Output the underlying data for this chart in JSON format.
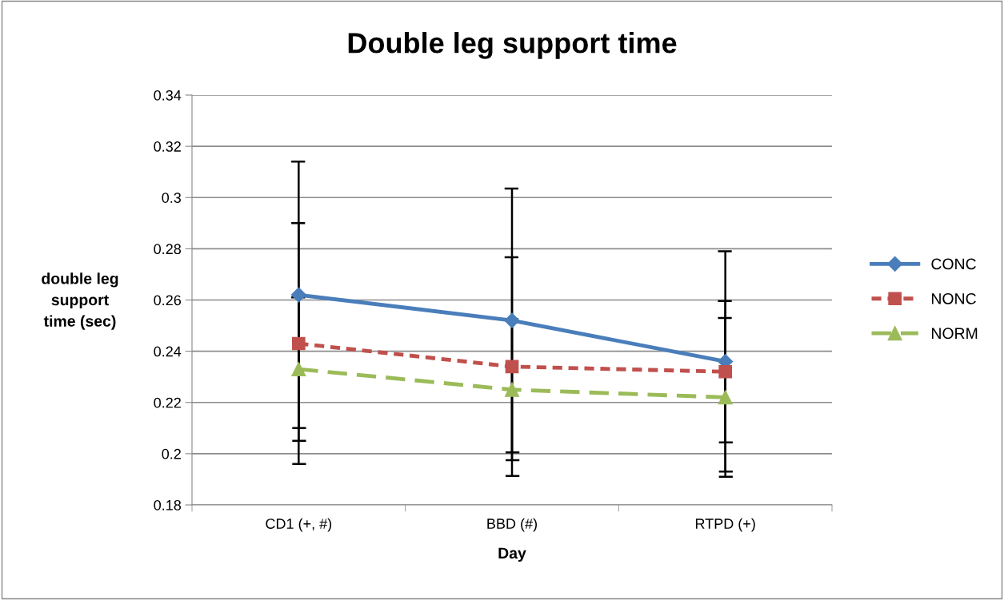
{
  "chart_data": {
    "type": "line",
    "title": "Double leg support time",
    "xlabel": "Day",
    "ylabel": "double leg\nsupport\ntime (sec)",
    "categories": [
      "CD1 (+, #)",
      "BBD (#)",
      "RTPD (+)"
    ],
    "series": [
      {
        "name": "CONC",
        "color": "#4a7ebb",
        "values": [
          0.262,
          0.252,
          0.236
        ],
        "errors": [
          0.052,
          0.0515,
          0.043
        ],
        "marker": "diamond",
        "line_style": "solid"
      },
      {
        "name": "NONC",
        "color": "#c0504d",
        "values": [
          0.243,
          0.234,
          0.232
        ],
        "errors": [
          0.047,
          0.0427,
          0.0276
        ],
        "marker": "square",
        "line_style": "dotted"
      },
      {
        "name": "NORM",
        "color": "#9bbb59",
        "values": [
          0.233,
          0.225,
          0.222
        ],
        "errors": [
          0.028,
          0.0275,
          0.031
        ],
        "marker": "triangle",
        "line_style": "dashed"
      }
    ],
    "ylim": [
      0.18,
      0.34
    ],
    "yticks": [
      0.18,
      0.2,
      0.22,
      0.24,
      0.26,
      0.28,
      0.3,
      0.32,
      0.34
    ],
    "grid": "y",
    "legend": "right"
  }
}
